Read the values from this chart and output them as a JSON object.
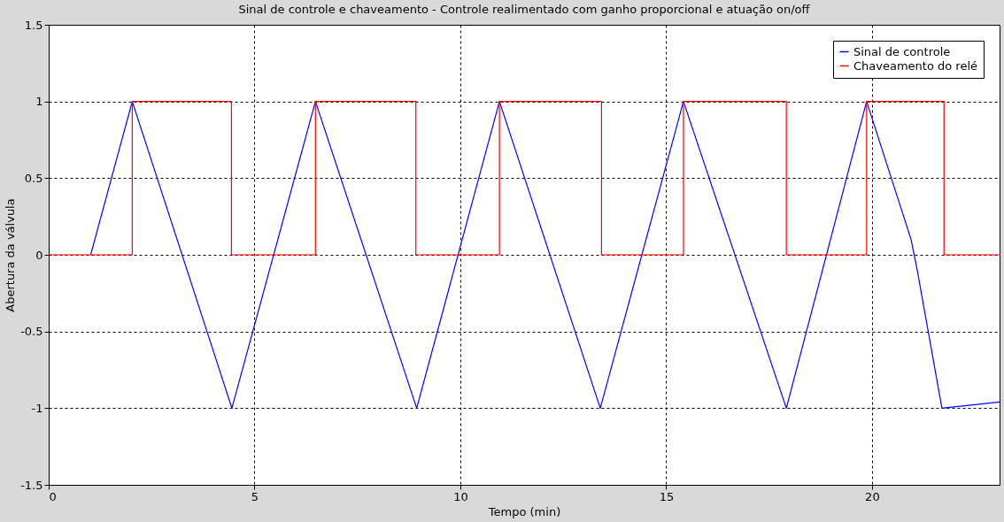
{
  "chart_data": {
    "type": "line",
    "title": "Sinal de controle e chaveamento - Controle realimentado com ganho proporcional e atuação on/off",
    "xlabel": "Tempo (min)",
    "ylabel": "Abertura da válvula",
    "xlim": [
      0,
      23.1
    ],
    "ylim": [
      -1.5,
      1.5
    ],
    "xticks": [
      0,
      5,
      10,
      15,
      20
    ],
    "yticks": [
      -1.5,
      -1,
      -0.5,
      0,
      0.5,
      1,
      1.5
    ],
    "grid": true,
    "line_style": "solid",
    "legend": "top right",
    "series": [
      {
        "name": "Sinal de controle",
        "color": "#0000ff",
        "x": [
          1.02,
          2.03,
          4.45,
          6.48,
          8.94,
          10.95,
          13.4,
          15.42,
          17.92,
          19.87,
          20.95,
          21.1,
          21.7,
          23.1
        ],
        "values": [
          0,
          1,
          -1,
          1,
          -1,
          1,
          -1,
          1,
          -1,
          1,
          0.1,
          -0.1,
          -1,
          -0.96
        ]
      },
      {
        "name": "Chaveamento do relé",
        "color": "#ff0000",
        "type": "step",
        "x": [
          0,
          2.03,
          4.44,
          6.48,
          8.92,
          10.95,
          13.43,
          15.42,
          17.92,
          19.87,
          21.75,
          23.1
        ],
        "values": [
          0,
          1,
          0,
          1,
          0,
          1,
          0,
          1,
          0,
          1,
          0,
          0
        ]
      }
    ]
  }
}
